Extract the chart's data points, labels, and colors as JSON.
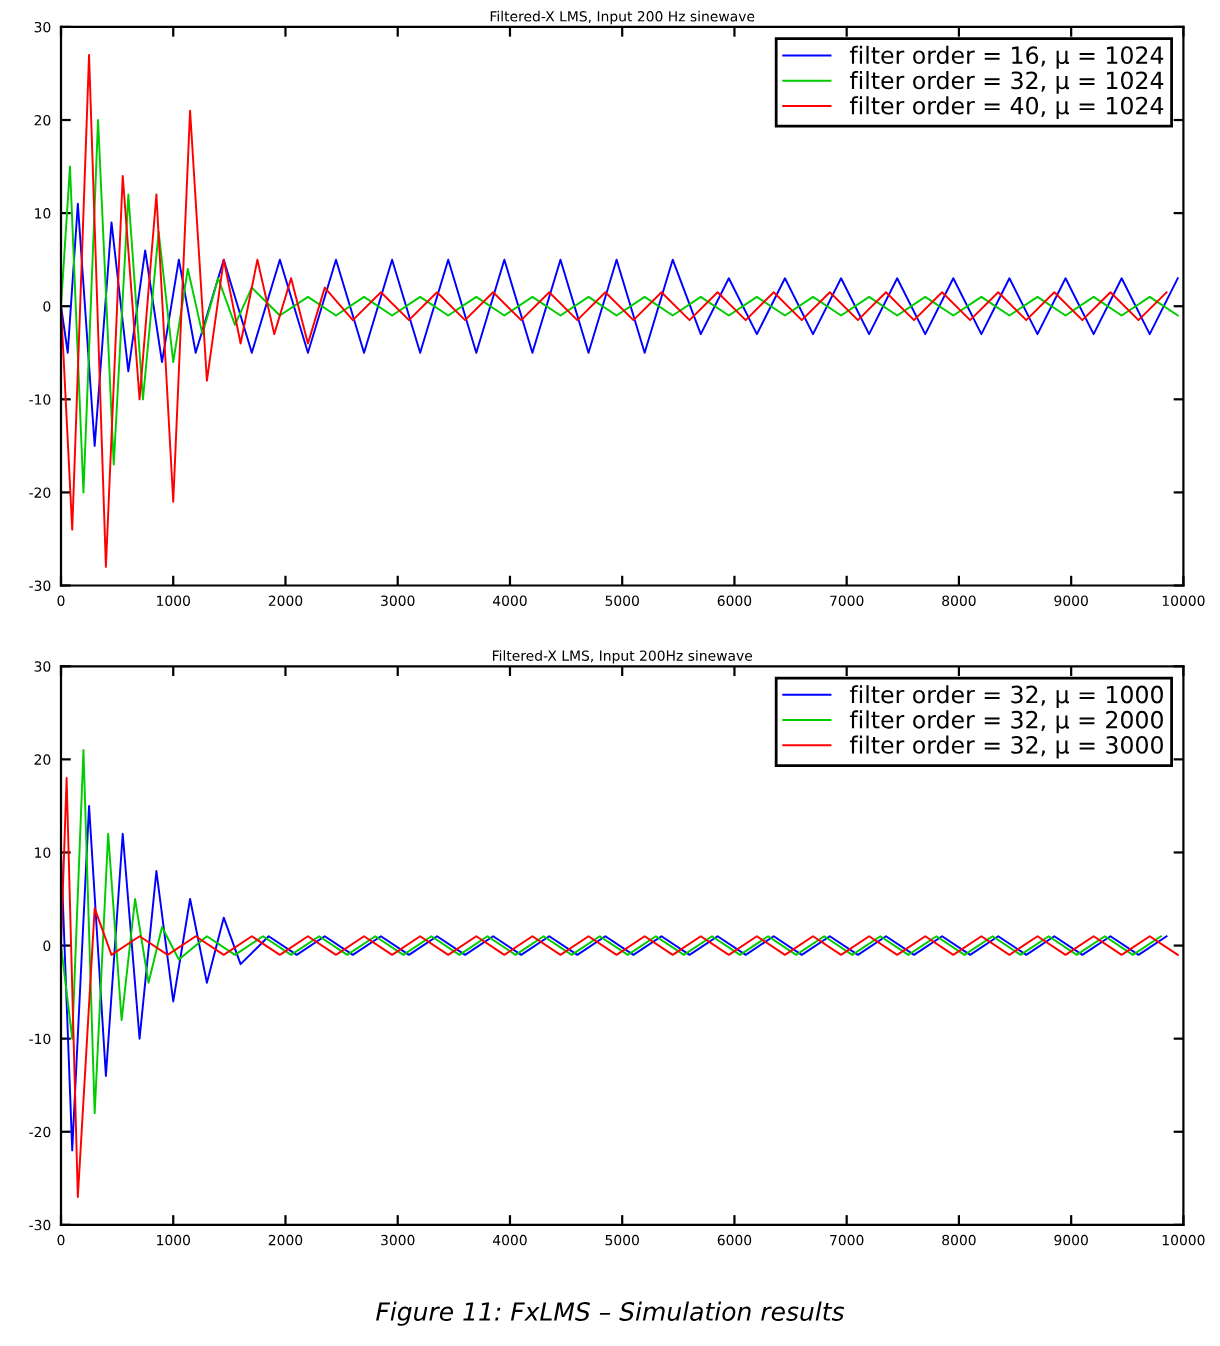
{
  "chart_data": [
    {
      "type": "line",
      "title": "Filtered-X LMS, Input 200 Hz sinewave",
      "xlim": [
        0,
        10000
      ],
      "xticks": [
        0,
        1000,
        2000,
        3000,
        4000,
        5000,
        6000,
        7000,
        8000,
        9000,
        10000
      ],
      "ylim": [
        -30,
        30
      ],
      "yticks": [
        -30,
        -20,
        -10,
        0,
        10,
        20,
        30
      ],
      "grid": false,
      "legend": "top right",
      "series": [
        {
          "name": "filter order = 16, μ = 1024",
          "color": "#0000ff",
          "x": [
            0,
            60,
            150,
            300,
            450,
            600,
            750,
            900,
            1050,
            1200,
            1450,
            1700,
            1950,
            2200,
            2450,
            2700,
            2950,
            3200,
            3450,
            3700,
            3950,
            4200,
            4450,
            4700,
            4950,
            5200,
            5450,
            5700,
            5950,
            6200,
            6450,
            6700,
            6950,
            7200,
            7450,
            7700,
            7950,
            8200,
            8450,
            8700,
            8950,
            9200,
            9450,
            9700,
            9950
          ],
          "values": [
            0,
            -5,
            11,
            -15,
            9,
            -7,
            6,
            -6,
            5,
            -5,
            5,
            -5,
            5,
            -5,
            5,
            -5,
            5,
            -5,
            5,
            -5,
            5,
            -5,
            5,
            -5,
            5,
            -5,
            5,
            -3,
            3,
            -3,
            3,
            -3,
            3,
            -3,
            3,
            -3,
            3,
            -3,
            3,
            -3,
            3,
            -3,
            3,
            -3,
            3
          ]
        },
        {
          "name": "filter order = 32, μ = 1024",
          "color": "#00cc00",
          "x": [
            0,
            80,
            200,
            330,
            470,
            600,
            730,
            870,
            1000,
            1130,
            1260,
            1400,
            1550,
            1700,
            1950,
            2200,
            2450,
            2700,
            2950,
            3200,
            3450,
            3700,
            3950,
            4200,
            4450,
            4700,
            4950,
            5200,
            5450,
            5700,
            5950,
            6200,
            6450,
            6700,
            6950,
            7200,
            7450,
            7700,
            7950,
            8200,
            8450,
            8700,
            8950,
            9200,
            9450,
            9700,
            9950
          ],
          "values": [
            0,
            15,
            -20,
            20,
            -17,
            12,
            -10,
            8,
            -6,
            4,
            -3,
            3,
            -2,
            2,
            -1,
            1,
            -1,
            1,
            -1,
            1,
            -1,
            1,
            -1,
            1,
            -1,
            1,
            -1,
            1,
            -1,
            1,
            -1,
            1,
            -1,
            1,
            -1,
            1,
            -1,
            1,
            -1,
            1,
            -1,
            1,
            -1,
            1,
            -1,
            1,
            -1
          ]
        },
        {
          "name": "filter order = 40, μ = 1024",
          "color": "#ff0000",
          "x": [
            0,
            100,
            250,
            400,
            550,
            700,
            850,
            1000,
            1150,
            1300,
            1450,
            1600,
            1750,
            1900,
            2050,
            2200,
            2350,
            2600,
            2850,
            3100,
            3350,
            3600,
            3850,
            4100,
            4350,
            4600,
            4850,
            5100,
            5350,
            5600,
            5850,
            6100,
            6350,
            6600,
            6850,
            7100,
            7350,
            7600,
            7850,
            8100,
            8350,
            8600,
            8850,
            9100,
            9350,
            9600,
            9850
          ],
          "values": [
            0,
            -24,
            27,
            -28,
            14,
            -10,
            12,
            -21,
            21,
            -8,
            5,
            -4,
            5,
            -3,
            3,
            -4,
            2,
            -1.5,
            1.5,
            -1.5,
            1.5,
            -1.5,
            1.5,
            -1.5,
            1.5,
            -1.5,
            1.5,
            -1.5,
            1.5,
            -1.5,
            1.5,
            -1.5,
            1.5,
            -1.5,
            1.5,
            -1.5,
            1.5,
            -1.5,
            1.5,
            -1.5,
            1.5,
            -1.5,
            1.5,
            -1.5,
            1.5,
            -1.5,
            1.5
          ]
        }
      ]
    },
    {
      "type": "line",
      "title": "Filtered-X LMS, Input 200Hz sinewave",
      "xlim": [
        0,
        10000
      ],
      "xticks": [
        0,
        1000,
        2000,
        3000,
        4000,
        5000,
        6000,
        7000,
        8000,
        9000,
        10000
      ],
      "ylim": [
        -30,
        30
      ],
      "yticks": [
        -30,
        -20,
        -10,
        0,
        10,
        20,
        30
      ],
      "grid": false,
      "legend": "top right",
      "annotations": [
        "Figure 11: FxLMS – Simulation results"
      ],
      "series": [
        {
          "name": "filter order = 32, μ = 1000",
          "color": "#0000ff",
          "x": [
            0,
            100,
            250,
            400,
            550,
            700,
            850,
            1000,
            1150,
            1300,
            1450,
            1600,
            1850,
            2100,
            2350,
            2600,
            2850,
            3100,
            3350,
            3600,
            3850,
            4100,
            4350,
            4600,
            4850,
            5100,
            5350,
            5600,
            5850,
            6100,
            6350,
            6600,
            6850,
            7100,
            7350,
            7600,
            7850,
            8100,
            8350,
            8600,
            8850,
            9100,
            9350,
            9600,
            9850
          ],
          "values": [
            10,
            -22,
            15,
            -14,
            12,
            -10,
            8,
            -6,
            5,
            -4,
            3,
            -2,
            1,
            -1,
            1,
            -1,
            1,
            -1,
            1,
            -1,
            1,
            -1,
            1,
            -1,
            1,
            -1,
            1,
            -1,
            1,
            -1,
            1,
            -1,
            1,
            -1,
            1,
            -1,
            1,
            -1,
            1,
            -1,
            1,
            -1,
            1,
            -1,
            1
          ]
        },
        {
          "name": "filter order = 32, μ = 2000",
          "color": "#00cc00",
          "x": [
            0,
            100,
            200,
            300,
            420,
            540,
            660,
            780,
            900,
            1050,
            1300,
            1550,
            1800,
            2050,
            2300,
            2550,
            2800,
            3050,
            3300,
            3550,
            3800,
            4050,
            4300,
            4550,
            4800,
            5050,
            5300,
            5550,
            5800,
            6050,
            6300,
            6550,
            6800,
            7050,
            7300,
            7550,
            7800,
            8050,
            8300,
            8550,
            8800,
            9050,
            9300,
            9550,
            9800
          ],
          "values": [
            0,
            -10,
            21,
            -18,
            12,
            -8,
            5,
            -4,
            2,
            -1.5,
            1,
            -1,
            1,
            -1,
            1,
            -1,
            1,
            -1,
            1,
            -1,
            1,
            -1,
            1,
            -1,
            1,
            -1,
            1,
            -1,
            1,
            -1,
            1,
            -1,
            1,
            -1,
            1,
            -1,
            1,
            -1,
            1,
            -1,
            1,
            -1,
            1,
            -1,
            1
          ]
        },
        {
          "name": "filter order = 32, μ = 3000",
          "color": "#ff0000",
          "x": [
            0,
            50,
            150,
            300,
            450,
            700,
            950,
            1200,
            1450,
            1700,
            1950,
            2200,
            2450,
            2700,
            2950,
            3200,
            3450,
            3700,
            3950,
            4200,
            4450,
            4700,
            4950,
            5200,
            5450,
            5700,
            5950,
            6200,
            6450,
            6700,
            6950,
            7200,
            7450,
            7700,
            7950,
            8200,
            8450,
            8700,
            8950,
            9200,
            9450,
            9700,
            9950
          ],
          "values": [
            0,
            18,
            -27,
            4,
            -1,
            1,
            -1,
            1,
            -1,
            1,
            -1,
            1,
            -1,
            1,
            -1,
            1,
            -1,
            1,
            -1,
            1,
            -1,
            1,
            -1,
            1,
            -1,
            1,
            -1,
            1,
            -1,
            1,
            -1,
            1,
            -1,
            1,
            -1,
            1,
            -1,
            1,
            -1,
            1,
            -1,
            1,
            -1
          ]
        }
      ]
    }
  ]
}
